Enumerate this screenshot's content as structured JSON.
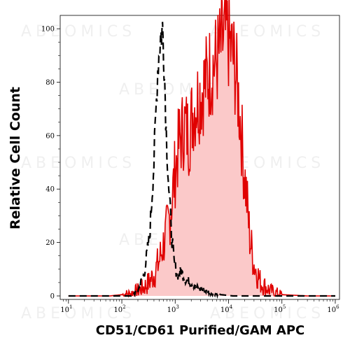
{
  "watermark_text": "ABEOMICS",
  "chart_data": {
    "type": "area",
    "xlabel": "CD51/CD61 Purified/GAM APC",
    "ylabel": "Relative Cell Count",
    "x_scale": "log",
    "xlim": [
      7,
      1200000
    ],
    "ylim": [
      0,
      105
    ],
    "x_ticks": [
      {
        "value": 10,
        "base": "10",
        "exp": "1"
      },
      {
        "value": 100,
        "base": "10",
        "exp": "2"
      },
      {
        "value": 1000,
        "base": "10",
        "exp": "3"
      },
      {
        "value": 10000,
        "base": "10",
        "exp": "4"
      },
      {
        "value": 100000,
        "base": "10",
        "exp": "5"
      },
      {
        "value": 1000000,
        "base": "10",
        "exp": "6"
      }
    ],
    "y_ticks": [
      0,
      20,
      40,
      60,
      80,
      100
    ],
    "grid": false,
    "series": [
      {
        "role": "isotype control",
        "style": "dashed",
        "color": "#000000",
        "fill": "none",
        "x": [
          10,
          150,
          200,
          260,
          330,
          400,
          470,
          530,
          580,
          620,
          680,
          760,
          850,
          960,
          1100,
          1300,
          1600,
          2000,
          2600,
          3500,
          5000,
          7000,
          12000,
          30000,
          100000,
          1000000
        ],
        "y": [
          0,
          0,
          2,
          8,
          22,
          50,
          85,
          97,
          100,
          88,
          62,
          40,
          24,
          12,
          8,
          9,
          6,
          5,
          3,
          2,
          1,
          0.5,
          0,
          0,
          0,
          0
        ]
      },
      {
        "role": "stained sample",
        "style": "solid",
        "color": "#e00000",
        "fill": "#fbc9c9",
        "x": [
          10,
          30,
          60,
          100,
          150,
          200,
          250,
          320,
          400,
          500,
          650,
          800,
          1000,
          1200,
          1500,
          1800,
          2200,
          2700,
          3200,
          4000,
          5000,
          6000,
          7000,
          8000,
          9000,
          10000,
          11000,
          12000,
          13500,
          15000,
          17000,
          19000,
          22000,
          25000,
          30000,
          40000,
          60000,
          100000,
          300000,
          1000000
        ],
        "y": [
          0,
          0,
          0,
          0.5,
          1,
          2,
          3,
          5,
          8,
          13,
          22,
          30,
          47,
          58,
          64,
          60,
          70,
          74,
          77,
          82,
          86,
          88,
          92,
          96,
          98,
          96,
          92,
          90,
          84,
          76,
          64,
          50,
          36,
          22,
          12,
          5,
          2,
          0.5,
          0,
          0
        ]
      }
    ]
  }
}
